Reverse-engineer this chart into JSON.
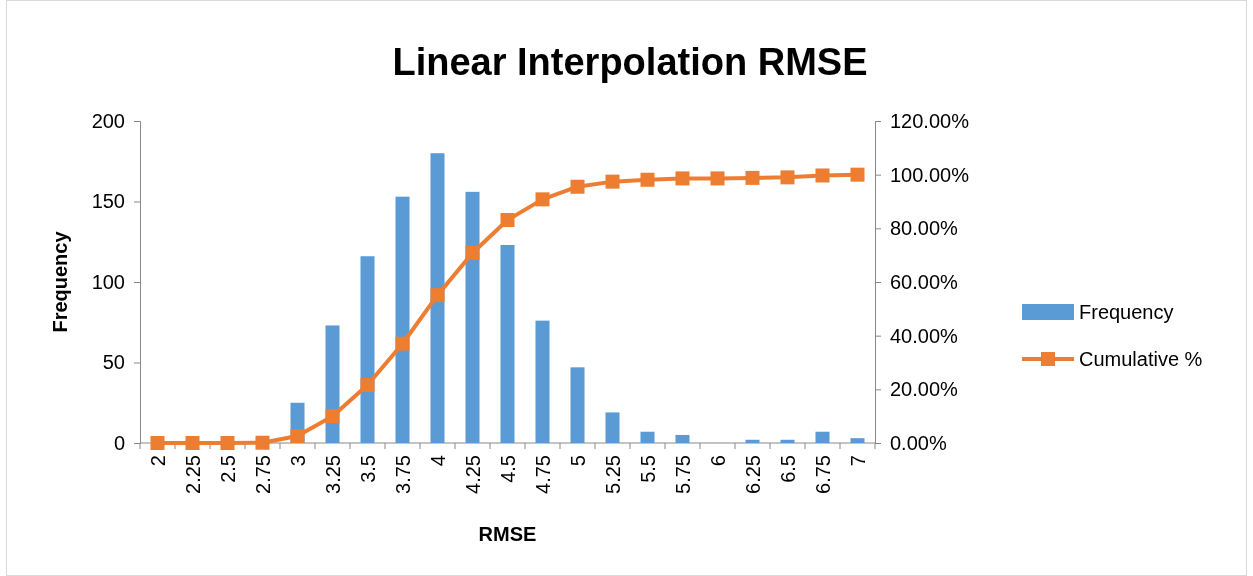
{
  "chart_data": {
    "type": "bar",
    "title": "Linear Interpolation RMSE",
    "xlabel": "RMSE",
    "ylabel": "Frequency",
    "categories": [
      "2",
      "2.25",
      "2.5",
      "2.75",
      "3",
      "3.25",
      "3.5",
      "3.75",
      "4",
      "4.25",
      "4.5",
      "4.75",
      "5",
      "5.25",
      "5.5",
      "5.75",
      "6",
      "6.25",
      "6.5",
      "6.75",
      "7"
    ],
    "series": [
      {
        "name": "Frequency",
        "color": "#5b9bd5",
        "values": [
          0,
          0,
          0,
          null,
          25,
          73,
          116,
          153,
          180,
          156,
          123,
          76,
          47,
          19,
          7,
          5,
          0,
          2,
          2,
          7,
          3
        ]
      },
      {
        "name": "Cumulative %",
        "type": "line",
        "axis": "y2",
        "color": "#ed7d31",
        "marker": "square",
        "values": [
          0,
          0,
          0,
          0.1,
          2.6,
          10,
          21.6,
          37,
          55.1,
          70.8,
          83.1,
          90.8,
          95.5,
          97.4,
          98.1,
          98.6,
          98.6,
          98.8,
          99,
          99.7,
          100
        ]
      }
    ],
    "ylim": [
      0,
      200
    ],
    "yticks": [
      0,
      50,
      100,
      150,
      200
    ],
    "y2lim": [
      0,
      120
    ],
    "y2ticks": [
      {
        "value": 0,
        "label": "0.00%"
      },
      {
        "value": 20,
        "label": "20.00%"
      },
      {
        "value": 40,
        "label": "40.00%"
      },
      {
        "value": 60,
        "label": "60.00%"
      },
      {
        "value": 80,
        "label": "80.00%"
      },
      {
        "value": 100,
        "label": "100.00%"
      },
      {
        "value": 120,
        "label": "120.00%"
      }
    ],
    "grid": false,
    "legend": "right"
  }
}
